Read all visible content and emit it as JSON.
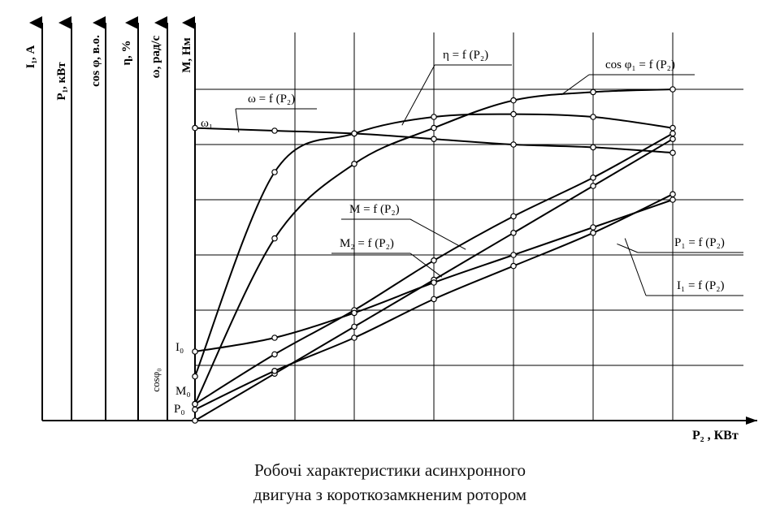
{
  "caption": {
    "line1": "Робочі характеристики асинхронного",
    "line2": "двигуна з короткозамкненим ротором"
  },
  "chart_data": {
    "type": "line",
    "grid": true,
    "x_axis_label": "P₂ , КВт",
    "axes": [
      {
        "id": "I1",
        "label": "I₁, А"
      },
      {
        "id": "P1",
        "label": "P₁, кВт"
      },
      {
        "id": "cos",
        "label": "cos φ, в.о."
      },
      {
        "id": "eta",
        "label": "η, %"
      },
      {
        "id": "omega",
        "label": "ω, рад/с"
      },
      {
        "id": "M",
        "label": "М, Нм"
      }
    ],
    "start_labels": [
      {
        "id": "omega1",
        "text": "ω₁"
      },
      {
        "id": "I0",
        "text": "I₀"
      },
      {
        "id": "cosphi0",
        "text": "cosφ₀"
      },
      {
        "id": "M0",
        "text": "M₀"
      },
      {
        "id": "P0",
        "text": "P₀"
      }
    ],
    "series": [
      {
        "id": "omega",
        "name": "ω = f (P₂)",
        "x": [
          0,
          1,
          2,
          3,
          4,
          5,
          6
        ],
        "y": [
          5.3,
          5.25,
          5.2,
          5.1,
          5.0,
          4.95,
          4.85
        ]
      },
      {
        "id": "eta",
        "name": "η = f (P₂)",
        "x": [
          0,
          1,
          2,
          3,
          4,
          5,
          6
        ],
        "y": [
          0.8,
          4.5,
          5.2,
          5.5,
          5.55,
          5.5,
          5.3
        ]
      },
      {
        "id": "cos",
        "name": "cos φ₁ = f (P₂)",
        "x": [
          0,
          1,
          2,
          3,
          4,
          5,
          6
        ],
        "y": [
          0.3,
          3.3,
          4.65,
          5.3,
          5.8,
          5.95,
          6.0
        ]
      },
      {
        "id": "M",
        "name": "M = f (P₂)",
        "x": [
          0,
          1,
          2,
          3,
          4,
          5,
          6
        ],
        "y": [
          0.3,
          1.2,
          2.0,
          2.9,
          3.7,
          4.4,
          5.2
        ]
      },
      {
        "id": "M2",
        "name": "M₂ = f (P₂)",
        "x": [
          0,
          1,
          2,
          3,
          4,
          5,
          6
        ],
        "y": [
          0.0,
          0.85,
          1.7,
          2.55,
          3.4,
          4.25,
          5.1
        ]
      },
      {
        "id": "P1",
        "name": "P₁ = f (P₂)",
        "x": [
          0,
          1,
          2,
          3,
          4,
          5,
          6
        ],
        "y": [
          0.2,
          0.9,
          1.5,
          2.2,
          2.8,
          3.4,
          4.1
        ]
      },
      {
        "id": "I1",
        "name": "I₁ = f (P₂)",
        "x": [
          0,
          1,
          2,
          3,
          4,
          5,
          6
        ],
        "y": [
          1.25,
          1.5,
          1.95,
          2.5,
          3.0,
          3.5,
          4.0
        ]
      }
    ]
  }
}
